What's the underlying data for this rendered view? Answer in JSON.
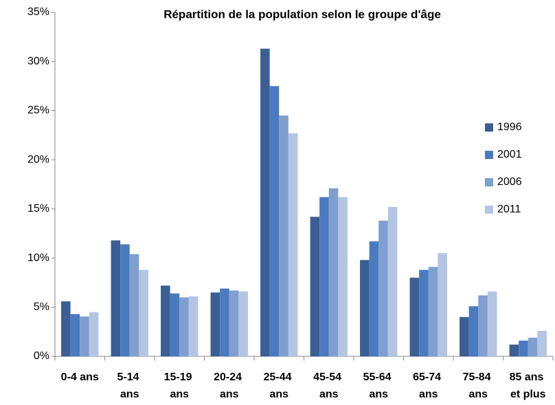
{
  "chart_data": {
    "type": "bar",
    "title": "Répartition de la population selon le groupe d'âge",
    "categories": [
      "0-4 ans",
      "5-14 ans",
      "15-19 ans",
      "20-24 ans",
      "25-44 ans",
      "45-54 ans",
      "55-64 ans",
      "65-74 ans",
      "75-84 ans",
      "85 ans et plus"
    ],
    "series": [
      {
        "name": "1996",
        "color": "#3b5f94",
        "values": [
          5.6,
          11.8,
          7.2,
          6.5,
          31.3,
          14.2,
          9.8,
          8.0,
          4.0,
          1.2
        ]
      },
      {
        "name": "2001",
        "color": "#4a7abf",
        "values": [
          4.3,
          11.4,
          6.4,
          6.9,
          27.5,
          16.2,
          11.7,
          8.8,
          5.1,
          1.6
        ]
      },
      {
        "name": "2006",
        "color": "#7f9fd0",
        "values": [
          4.05,
          10.4,
          6.0,
          6.7,
          24.5,
          17.1,
          13.8,
          9.1,
          6.2,
          1.9
        ]
      },
      {
        "name": "2011",
        "color": "#b4c5e4",
        "values": [
          4.5,
          8.8,
          6.1,
          6.6,
          22.7,
          16.2,
          15.2,
          10.5,
          6.6,
          2.6
        ]
      }
    ],
    "ylim": [
      0,
      35
    ],
    "yticks": [
      {
        "value": 0,
        "label": "0%"
      },
      {
        "value": 5,
        "label": "5%"
      },
      {
        "value": 10,
        "label": "10%"
      },
      {
        "value": 15,
        "label": "15%"
      },
      {
        "value": 20,
        "label": "20%"
      },
      {
        "value": 25,
        "label": "25%"
      },
      {
        "value": 30,
        "label": "30%"
      },
      {
        "value": 35,
        "label": "35%"
      }
    ],
    "grid": false,
    "legend": "right"
  }
}
